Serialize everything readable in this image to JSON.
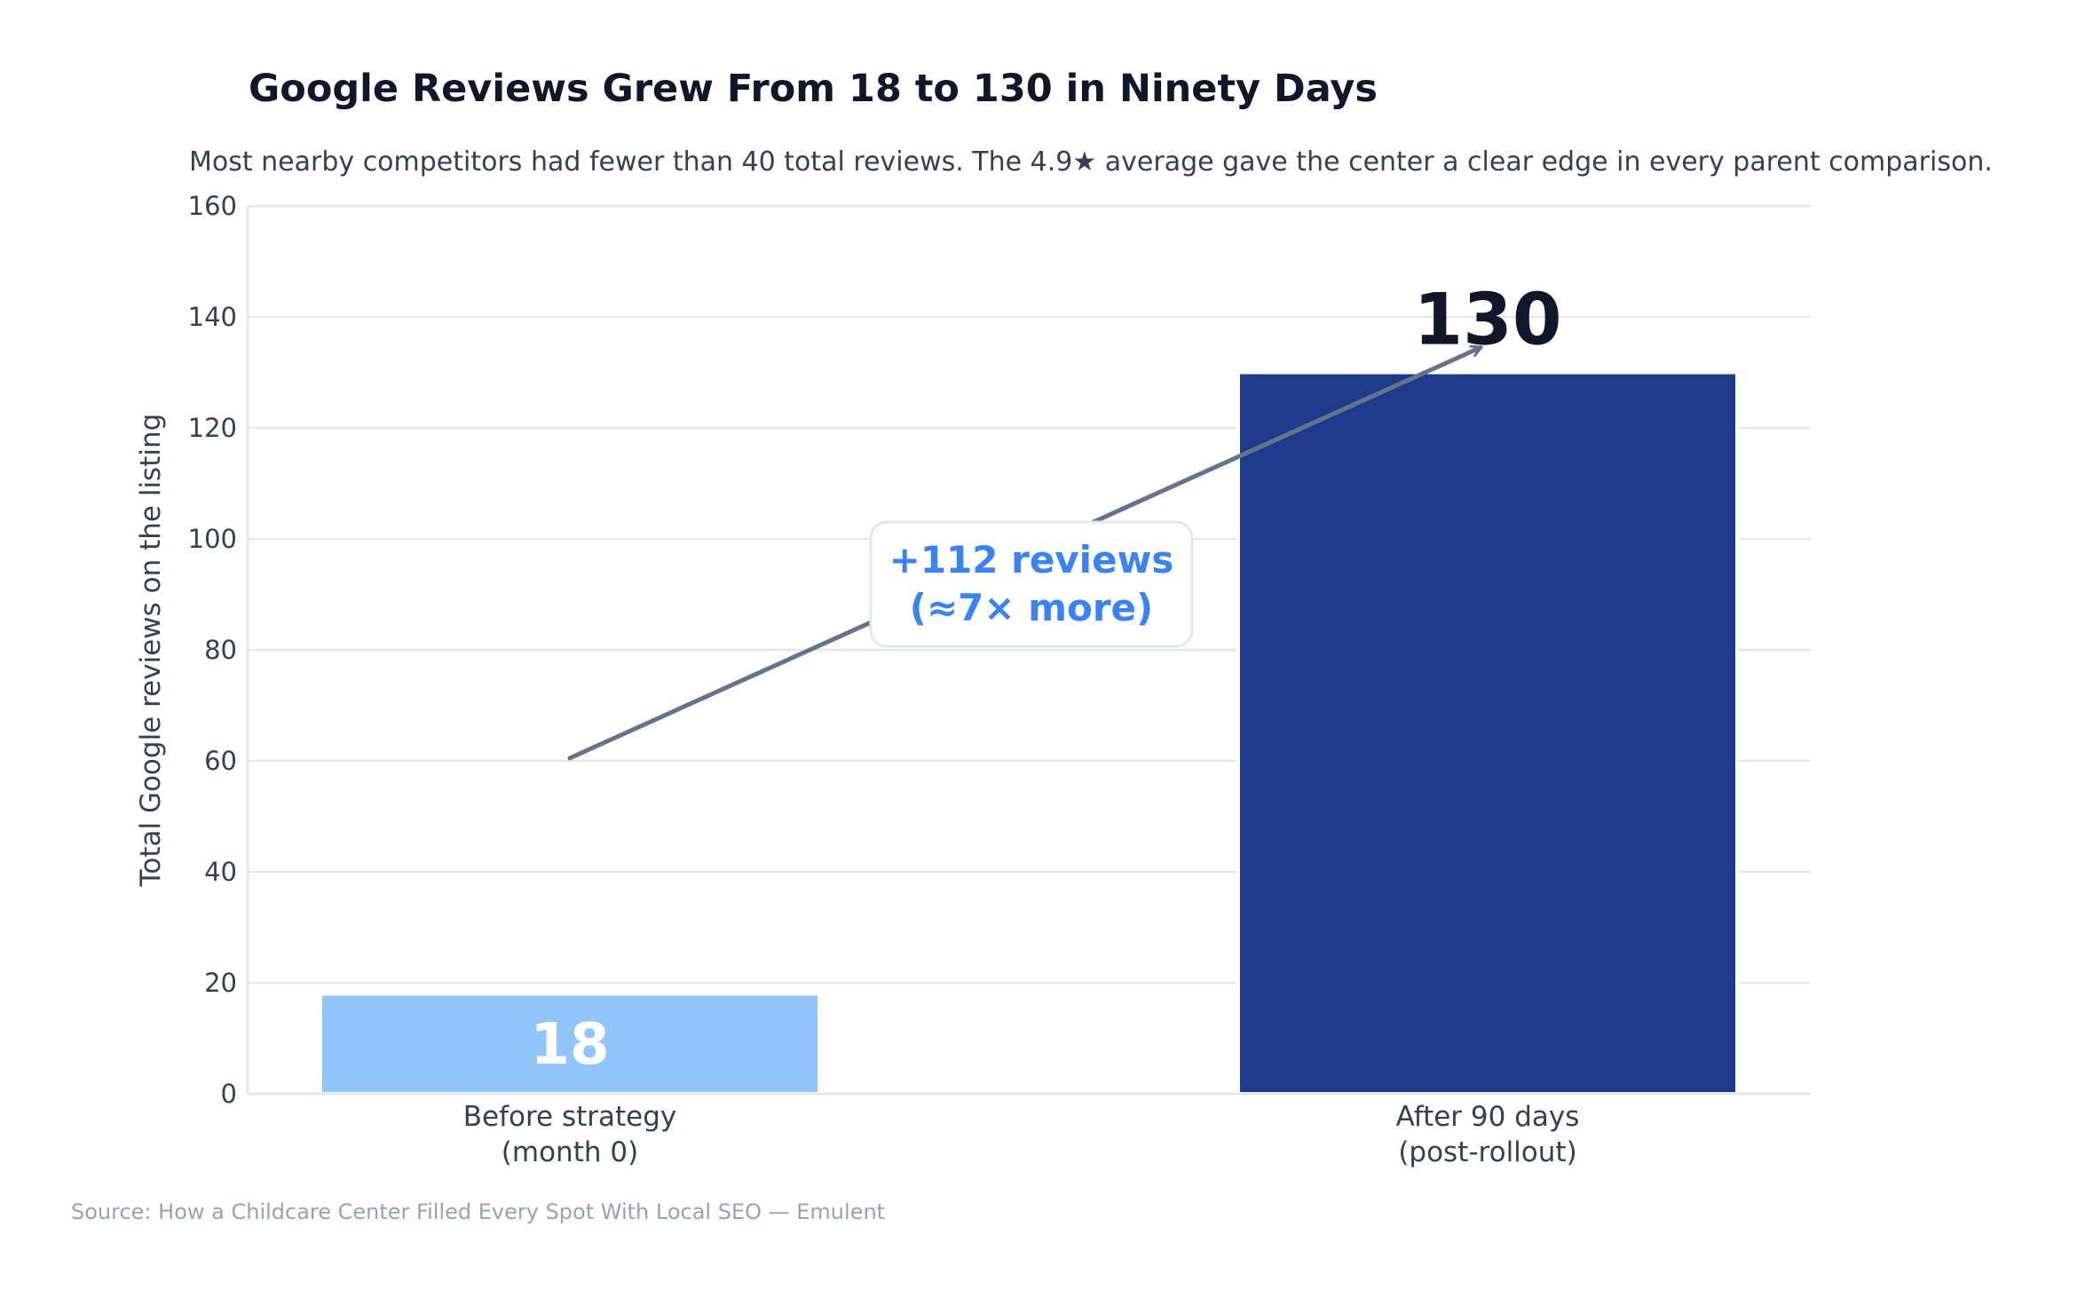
{
  "chart_data": {
    "type": "bar",
    "title": "Google Reviews Grew From 18 to 130 in Ninety Days",
    "subtitle": "Most nearby competitors had fewer than 40 total reviews. The 4.9★ average gave the center a clear edge in every parent comparison.",
    "ylabel": "Total Google reviews on the listing",
    "xlabel": "",
    "ylim": [
      0,
      160
    ],
    "yticks": [
      0,
      20,
      40,
      60,
      80,
      100,
      120,
      140,
      160
    ],
    "grid": true,
    "categories": [
      [
        "Before strategy",
        "(month 0)"
      ],
      [
        "After 90 days",
        "(post-rollout)"
      ]
    ],
    "values": [
      18,
      130
    ],
    "data_labels": [
      "18",
      "130"
    ],
    "colors": [
      "#93c5fd",
      "#1e3a8a"
    ],
    "annotation": {
      "lines": [
        "+112 reviews",
        "(≈7× more)"
      ],
      "color": "#3b82f6",
      "arrow_from": {
        "category_index": 0,
        "y": 60.5
      },
      "arrow_to": {
        "category_index": 1,
        "y": 134.5
      }
    },
    "source": "Source: How a Childcare Center Filled Every Spot With Local SEO — Emulent"
  },
  "colors": {
    "title": "#0f172a",
    "text": "#334155",
    "muted": "#94a3b8",
    "grid": "#e2e8f0",
    "arrow": "#64748b",
    "callout_border": "#e2e8f0"
  }
}
